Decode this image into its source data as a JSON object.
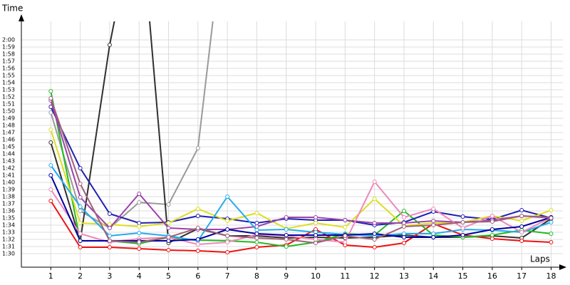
{
  "chart_data": {
    "type": "line",
    "y_label": "Time",
    "x_label": "Laps",
    "x": [
      1,
      2,
      3,
      4,
      5,
      6,
      7,
      8,
      9,
      10,
      11,
      12,
      13,
      14,
      15,
      16,
      17,
      18
    ],
    "xlim": [
      0,
      18.4
    ],
    "xticks": [
      1,
      2,
      3,
      4,
      5,
      6,
      7,
      8,
      9,
      10,
      11,
      12,
      13,
      14,
      15,
      16,
      17,
      18
    ],
    "ylim": [
      88.1,
      122.6
    ],
    "yticks": [
      {
        "value": 90,
        "label": "1:30"
      },
      {
        "value": 91,
        "label": "1:31"
      },
      {
        "value": 92,
        "label": "1:32"
      },
      {
        "value": 93,
        "label": "1:33"
      },
      {
        "value": 94,
        "label": "1:34"
      },
      {
        "value": 95,
        "label": "1:35"
      },
      {
        "value": 96,
        "label": "1:36"
      },
      {
        "value": 97,
        "label": "1:37"
      },
      {
        "value": 98,
        "label": "1:38"
      },
      {
        "value": 99,
        "label": "1:39"
      },
      {
        "value": 100,
        "label": "1:40"
      },
      {
        "value": 101,
        "label": "1:41"
      },
      {
        "value": 102,
        "label": "1:42"
      },
      {
        "value": 103,
        "label": "1:43"
      },
      {
        "value": 104,
        "label": "1:44"
      },
      {
        "value": 105,
        "label": "1:45"
      },
      {
        "value": 106,
        "label": "1:46"
      },
      {
        "value": 107,
        "label": "1:47"
      },
      {
        "value": 108,
        "label": "1:48"
      },
      {
        "value": 109,
        "label": "1:49"
      },
      {
        "value": 110,
        "label": "1:50"
      },
      {
        "value": 111,
        "label": "1:51"
      },
      {
        "value": 112,
        "label": "1:52"
      },
      {
        "value": 113,
        "label": "1:53"
      },
      {
        "value": 114,
        "label": "1:54"
      },
      {
        "value": 115,
        "label": "1:55"
      },
      {
        "value": 116,
        "label": "1:56"
      },
      {
        "value": 117,
        "label": "1:57"
      },
      {
        "value": 118,
        "label": "1:58"
      },
      {
        "value": 119,
        "label": "1:59"
      },
      {
        "value": 120,
        "label": "2:00"
      }
    ],
    "grid": true,
    "series": [
      {
        "color": "#9a9a9a",
        "values": [
          109.8,
          96.0,
          93.6,
          97.2,
          96.9,
          104.8,
          140,
          null,
          null,
          null,
          null,
          null,
          null,
          null,
          null,
          null,
          null,
          null
        ]
      },
      {
        "color": "#303030",
        "values": [
          105.6,
          91.8,
          119.3,
          140,
          91.5,
          93.5,
          92.5,
          92.5,
          92.2,
          92.3,
          92.2,
          92.3,
          92.6,
          92.3,
          92.3,
          92.5,
          92.2,
          94.9
        ]
      },
      {
        "color": "#ee1111",
        "values": [
          97.4,
          90.9,
          90.9,
          90.7,
          90.5,
          90.4,
          90.2,
          90.9,
          91.2,
          93.4,
          91.2,
          90.9,
          91.5,
          94.2,
          92.6,
          92.1,
          91.8,
          91.6
        ]
      },
      {
        "color": "#22bb22",
        "values": [
          112.8,
          91.8,
          91.8,
          91.4,
          92.3,
          91.9,
          91.8,
          91.6,
          91.0,
          91.6,
          92.8,
          92.6,
          96.0,
          92.6,
          92.3,
          92.6,
          93.3,
          92.8
        ]
      },
      {
        "color": "#2020b0",
        "values": [
          110.6,
          102.0,
          95.6,
          94.3,
          94.4,
          95.3,
          94.9,
          94.3,
          94.9,
          94.7,
          94.7,
          94.0,
          94.4,
          95.9,
          95.2,
          94.8,
          96.1,
          95.0
        ]
      },
      {
        "color": "#dddd22",
        "values": [
          107.4,
          94.3,
          94.1,
          93.8,
          94.3,
          96.3,
          94.6,
          95.7,
          93.5,
          94.3,
          93.7,
          97.7,
          93.9,
          94.3,
          94.4,
          95.3,
          94.6,
          96.1
        ]
      },
      {
        "color": "#9944aa",
        "values": [
          111.5,
          97.9,
          93.6,
          98.4,
          93.6,
          93.4,
          93.4,
          93.8,
          95.1,
          95.1,
          94.7,
          94.3,
          94.3,
          94.6,
          94.4,
          94.7,
          95.3,
          95.1
        ]
      },
      {
        "color": "#22aaee",
        "values": [
          102.4,
          96.6,
          92.5,
          92.9,
          92.5,
          91.8,
          98.0,
          93.3,
          93.4,
          93.0,
          92.7,
          92.5,
          92.8,
          92.8,
          93.4,
          93.3,
          93.0,
          94.4
        ]
      },
      {
        "color": "#ee88bb",
        "values": [
          99.0,
          92.8,
          91.6,
          92.1,
          92.3,
          91.3,
          91.6,
          92.7,
          92.5,
          92.0,
          91.6,
          100.1,
          95.1,
          96.3,
          93.6,
          95.3,
          93.0,
          95.1
        ]
      },
      {
        "color": "#0000a0",
        "values": [
          101.0,
          91.8,
          91.8,
          91.8,
          91.8,
          92.0,
          93.4,
          92.8,
          92.6,
          92.6,
          92.6,
          92.8,
          92.3,
          92.3,
          92.6,
          93.4,
          93.8,
          95.1
        ]
      },
      {
        "color": "#a0607a",
        "values": [
          111.8,
          99.8,
          91.8,
          91.6,
          92.3,
          93.6,
          92.5,
          92.2,
          92.0,
          91.5,
          92.5,
          92.0,
          93.8,
          94.0,
          94.4,
          94.5,
          95.3,
          95.0
        ]
      }
    ]
  }
}
